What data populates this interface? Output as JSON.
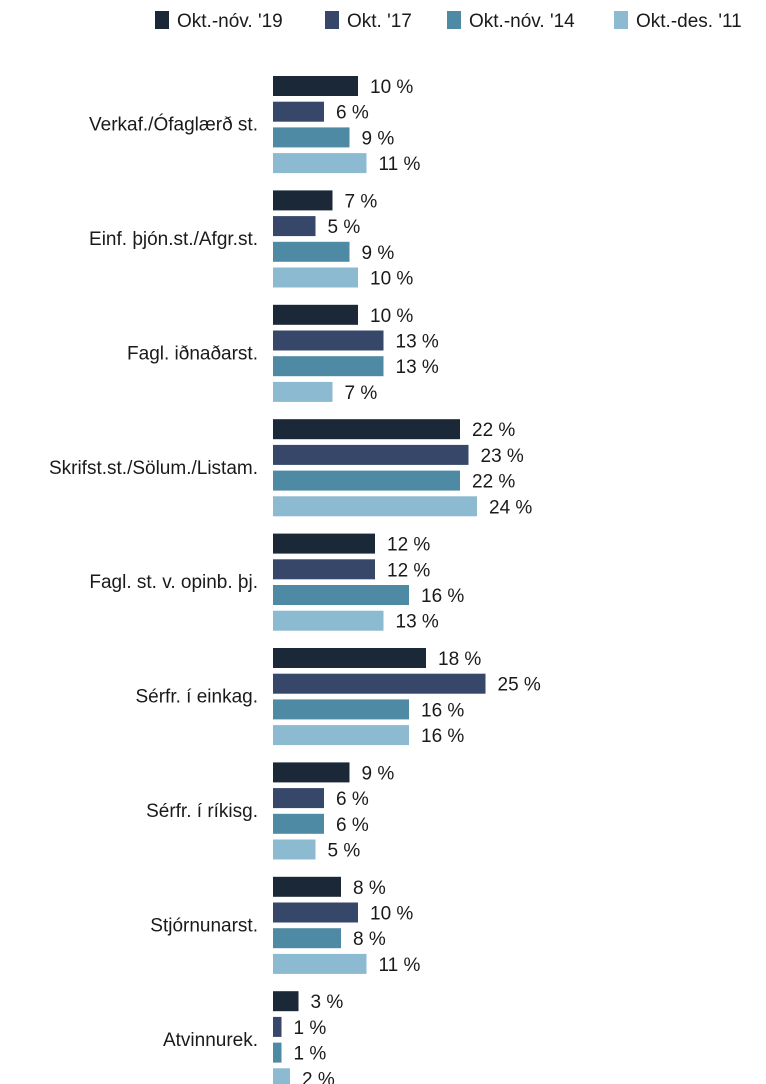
{
  "chart_data": {
    "type": "bar",
    "orientation": "horizontal",
    "legend_position": "top-right",
    "grid": false,
    "value_suffix": " %",
    "xlim": [
      0,
      25
    ],
    "categories": [
      "Verkaf./Ófaglærð st.",
      "Einf. þjón.st./Afgr.st.",
      "Fagl. iðnaðarst.",
      "Skrifst.st./Sölum./Listam.",
      "Fagl. st. v. opinb. þj.",
      "Sérfr. í einkag.",
      "Sérfr. í ríkisg.",
      "Stjórnunarst.",
      "Atvinnurek."
    ],
    "series": [
      {
        "name": "Okt.-nóv. '19",
        "color": "#1b2838",
        "values": [
          10,
          7,
          10,
          22,
          12,
          18,
          9,
          8,
          3
        ]
      },
      {
        "name": "Okt. '17",
        "color": "#36476a",
        "values": [
          6,
          5,
          13,
          23,
          12,
          25,
          6,
          10,
          1
        ]
      },
      {
        "name": "Okt.-nóv. '14",
        "color": "#4f8aa4",
        "values": [
          9,
          9,
          13,
          22,
          16,
          16,
          6,
          8,
          1
        ]
      },
      {
        "name": "Okt.-des. '11",
        "color": "#8cbad1",
        "values": [
          11,
          10,
          7,
          24,
          13,
          16,
          5,
          11,
          2
        ]
      }
    ]
  }
}
